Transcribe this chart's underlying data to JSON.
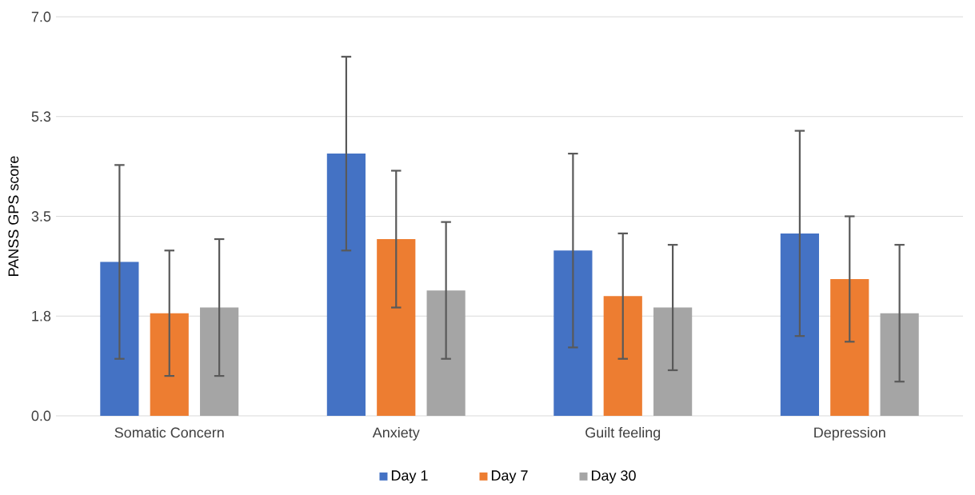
{
  "chart_data": {
    "type": "bar",
    "ylabel": "PANSS GPS score",
    "categories": [
      "Somatic Concern",
      "Anxiety",
      "Guilt feeling",
      "Depression"
    ],
    "series": [
      {
        "name": "Day 1",
        "color": "#4472c4",
        "values": [
          2.7,
          4.6,
          2.9,
          3.2
        ],
        "errors": [
          [
            1.0,
            4.4
          ],
          [
            2.9,
            6.3
          ],
          [
            1.2,
            4.6
          ],
          [
            1.4,
            5.0
          ]
        ]
      },
      {
        "name": "Day 7",
        "color": "#ed7d31",
        "values": [
          1.8,
          3.1,
          2.1,
          2.4
        ],
        "errors": [
          [
            0.7,
            2.9
          ],
          [
            1.9,
            4.3
          ],
          [
            1.0,
            3.2
          ],
          [
            1.3,
            3.5
          ]
        ]
      },
      {
        "name": "Day 30",
        "color": "#a5a5a5",
        "values": [
          1.9,
          2.2,
          1.9,
          1.8
        ],
        "errors": [
          [
            0.7,
            3.1
          ],
          [
            1.0,
            3.4
          ],
          [
            0.8,
            3.0
          ],
          [
            0.6,
            3.0
          ]
        ]
      }
    ],
    "ylim": [
      0,
      7.0
    ],
    "yticks": [
      {
        "value": 0,
        "label": "0.0"
      },
      {
        "value": 1.75,
        "label": "1.8"
      },
      {
        "value": 3.5,
        "label": "3.5"
      },
      {
        "value": 5.25,
        "label": "5.3"
      },
      {
        "value": 7.0,
        "label": "7.0"
      }
    ],
    "grid": "y",
    "legend": "bottom"
  }
}
